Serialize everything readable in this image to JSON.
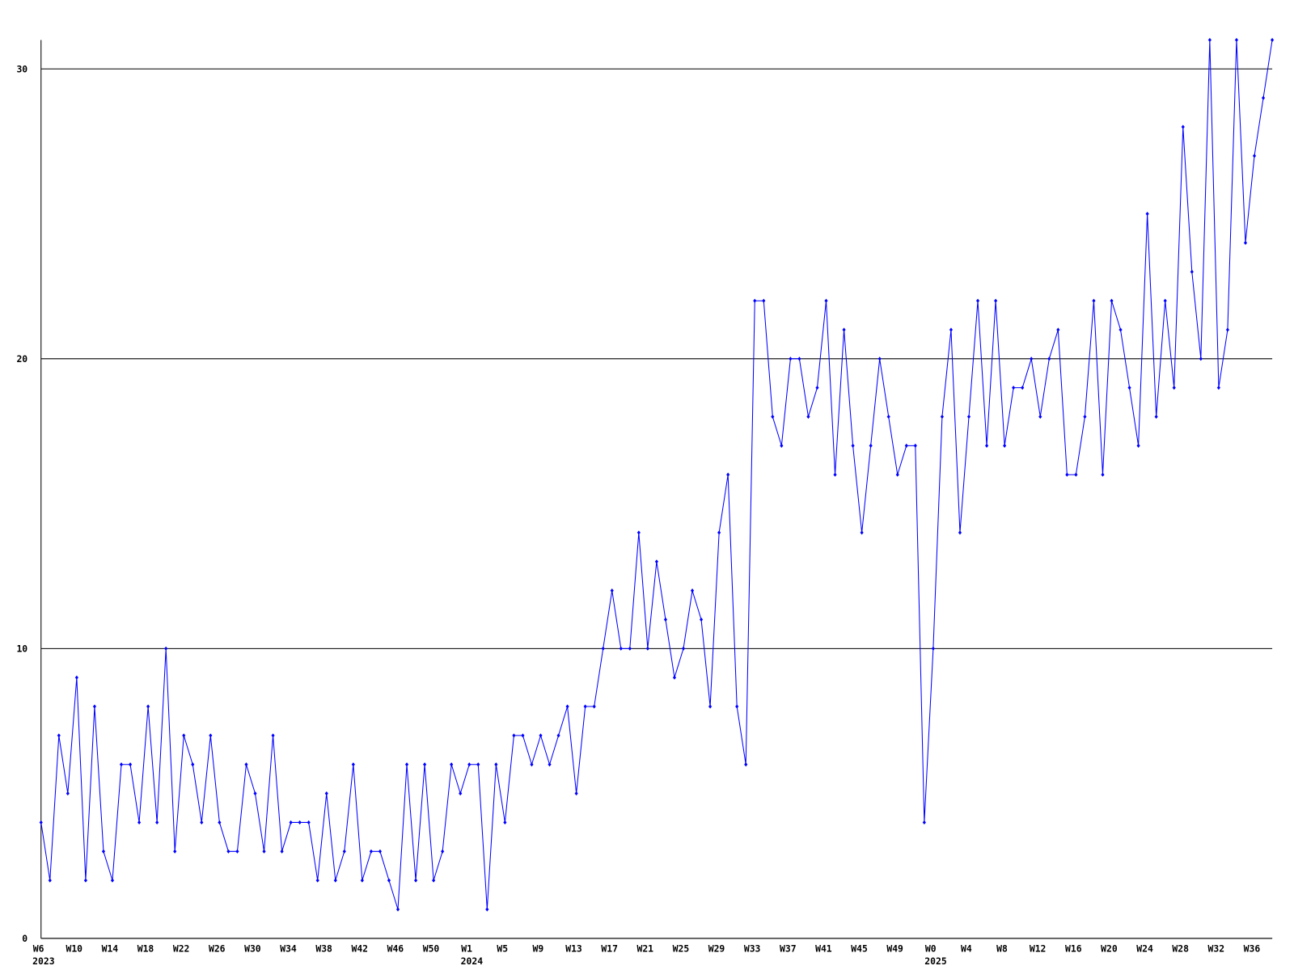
{
  "chart_data": {
    "type": "line",
    "categories": [
      "W6",
      null,
      null,
      null,
      "W10",
      null,
      null,
      null,
      "W14",
      null,
      null,
      null,
      "W18",
      null,
      null,
      null,
      "W22",
      null,
      null,
      null,
      "W26",
      null,
      null,
      null,
      "W30",
      null,
      null,
      null,
      "W34",
      null,
      null,
      null,
      "W38",
      null,
      null,
      null,
      "W42",
      null,
      null,
      null,
      "W46",
      null,
      null,
      null,
      "W50",
      null,
      null,
      null,
      "W1",
      null,
      null,
      null,
      "W5",
      null,
      null,
      null,
      "W9",
      null,
      null,
      null,
      "W13",
      null,
      null,
      null,
      "W17",
      null,
      null,
      null,
      "W21",
      null,
      null,
      null,
      "W25",
      null,
      null,
      null,
      "W29",
      null,
      null,
      null,
      "W33",
      null,
      null,
      null,
      "W37",
      null,
      null,
      null,
      "W41",
      null,
      null,
      null,
      "W45",
      null,
      null,
      null,
      "W49",
      null,
      null,
      null,
      "W0",
      null,
      null,
      null,
      "W4",
      null,
      null,
      null,
      "W8",
      null,
      null,
      null,
      "W12",
      null,
      null,
      null,
      "W16",
      null,
      null,
      null,
      "W20",
      null,
      null,
      null,
      "W24",
      null,
      null,
      null,
      "W28",
      null,
      null,
      null,
      "W32",
      null,
      null,
      null,
      "W36",
      null,
      null
    ],
    "category_years": [
      "2023",
      null,
      null,
      null,
      null,
      null,
      null,
      null,
      null,
      null,
      null,
      null,
      null,
      null,
      null,
      null,
      null,
      null,
      null,
      null,
      null,
      null,
      null,
      null,
      null,
      null,
      null,
      null,
      null,
      null,
      null,
      null,
      null,
      null,
      null,
      null,
      null,
      null,
      null,
      null,
      null,
      null,
      null,
      null,
      null,
      null,
      null,
      null,
      "2024",
      null,
      null,
      null,
      null,
      null,
      null,
      null,
      null,
      null,
      null,
      null,
      null,
      null,
      null,
      null,
      null,
      null,
      null,
      null,
      null,
      null,
      null,
      null,
      null,
      null,
      null,
      null,
      null,
      null,
      null,
      null,
      null,
      null,
      null,
      null,
      null,
      null,
      null,
      null,
      null,
      null,
      null,
      null,
      null,
      null,
      null,
      null,
      null,
      null,
      null,
      null,
      "2025",
      null,
      null,
      null,
      null,
      null,
      null,
      null,
      null,
      null,
      null,
      null,
      null,
      null,
      null,
      null,
      null,
      null,
      null,
      null,
      null,
      null,
      null,
      null,
      null,
      null,
      null,
      null,
      null,
      null,
      null,
      null,
      null,
      null,
      null,
      null,
      null,
      null,
      null
    ],
    "values": [
      4,
      2,
      7,
      5,
      9,
      2,
      8,
      3,
      2,
      6,
      6,
      4,
      8,
      4,
      10,
      3,
      7,
      6,
      4,
      7,
      4,
      3,
      3,
      6,
      5,
      3,
      7,
      3,
      4,
      4,
      4,
      2,
      5,
      2,
      3,
      6,
      2,
      3,
      3,
      2,
      1,
      6,
      2,
      6,
      2,
      3,
      6,
      5,
      6,
      6,
      1,
      6,
      4,
      7,
      7,
      6,
      7,
      6,
      7,
      8,
      5,
      8,
      8,
      10,
      12,
      10,
      10,
      14,
      10,
      13,
      11,
      9,
      10,
      12,
      11,
      8,
      14,
      16,
      8,
      6,
      22,
      22,
      18,
      17,
      20,
      20,
      18,
      19,
      22,
      16,
      21,
      17,
      14,
      17,
      20,
      18,
      16,
      17,
      17,
      4,
      10,
      18,
      21,
      14,
      18,
      22,
      17,
      22,
      17,
      19,
      19,
      20,
      18,
      20,
      21,
      16,
      16,
      18,
      22,
      16,
      22,
      21,
      19,
      17,
      25,
      18,
      22,
      19,
      28,
      23,
      20,
      31,
      19,
      21,
      31,
      24,
      27,
      29,
      31
    ],
    "color": "#0000ff",
    "ylim": [
      0,
      31
    ],
    "yticks": [
      0,
      10,
      20,
      30
    ],
    "grid": true
  }
}
